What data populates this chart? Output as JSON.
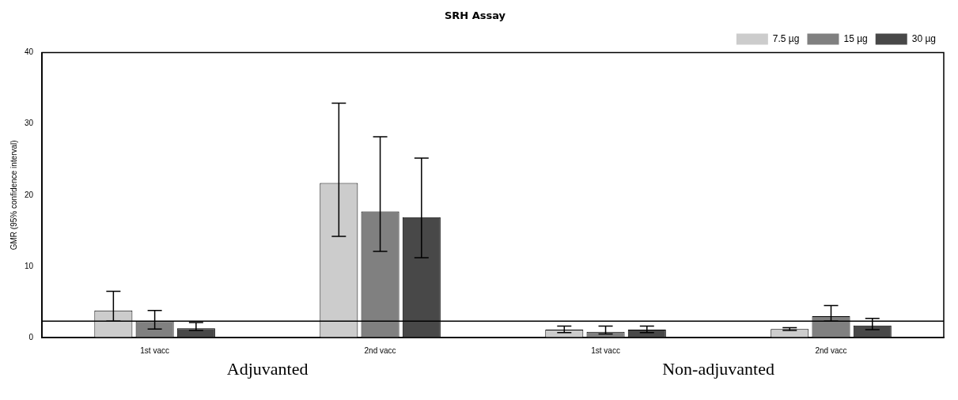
{
  "chart_data": {
    "type": "bar",
    "title": "SRH Assay",
    "ylabel": "GMR (95% confidence interval)",
    "categories": [
      "1st vacc",
      "2nd vacc",
      "1st vacc",
      "2nd vacc"
    ],
    "series": [
      {
        "name": "7.5 µg",
        "color": "#cccccc",
        "values": [
          3.8,
          21.7,
          1.1,
          1.2
        ],
        "errors": [
          [
            2.3,
            6.5
          ],
          [
            14.2,
            32.9
          ],
          [
            0.7,
            1.6
          ],
          [
            1.0,
            1.4
          ]
        ]
      },
      {
        "name": "15 µg",
        "color": "#808080",
        "values": [
          2.3,
          17.7,
          0.8,
          3.0
        ],
        "errors": [
          [
            1.2,
            3.8
          ],
          [
            12.1,
            28.2
          ],
          [
            0.5,
            1.6
          ],
          [
            2.3,
            4.5
          ]
        ]
      },
      {
        "name": "30 µg",
        "color": "#484848",
        "values": [
          1.3,
          16.9,
          1.1,
          1.7
        ],
        "errors": [
          [
            1.0,
            2.1
          ],
          [
            11.2,
            25.2
          ],
          [
            0.7,
            1.6
          ],
          [
            1.1,
            2.7
          ]
        ]
      }
    ],
    "ylim": [
      0,
      40
    ],
    "yticks": [
      0,
      10,
      20,
      30,
      40
    ],
    "grid": false,
    "legend": "top right",
    "ref_lines": [
      {
        "axis": "y",
        "value": 2.3
      }
    ],
    "annotations": [
      "Adjuvanted",
      "Non-adjuvanted"
    ]
  }
}
